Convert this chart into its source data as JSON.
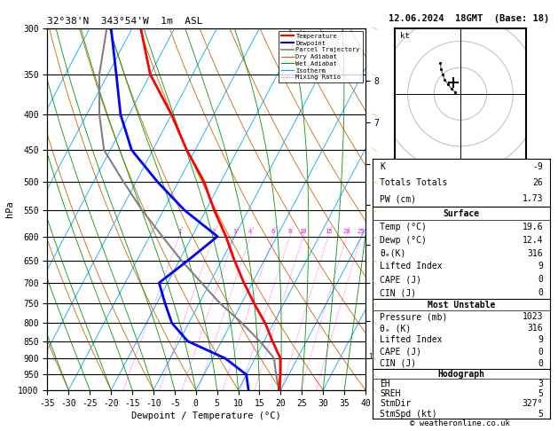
{
  "title_left": "32°38'N  343°54'W  1m  ASL",
  "title_right": "12.06.2024  18GMT  (Base: 18)",
  "copyright": "© weatheronline.co.uk",
  "xlabel": "Dewpoint / Temperature (°C)",
  "ylabel_left": "hPa",
  "pressure_levels": [
    300,
    350,
    400,
    450,
    500,
    550,
    600,
    650,
    700,
    750,
    800,
    850,
    900,
    950,
    1000
  ],
  "temp_profile": {
    "pressure": [
      1000,
      950,
      900,
      850,
      800,
      750,
      700,
      650,
      600,
      550,
      500,
      450,
      400,
      350,
      300
    ],
    "temp": [
      19.6,
      18.0,
      16.0,
      12.0,
      8.0,
      3.0,
      -2.0,
      -7.0,
      -12.0,
      -18.0,
      -24.0,
      -32.0,
      -40.0,
      -50.0,
      -58.0
    ]
  },
  "dewp_profile": {
    "pressure": [
      1000,
      950,
      900,
      850,
      800,
      750,
      700,
      650,
      600,
      550,
      500,
      450,
      400,
      350,
      300
    ],
    "temp": [
      12.4,
      10.0,
      3.0,
      -8.0,
      -14.0,
      -18.0,
      -22.0,
      -18.0,
      -14.0,
      -25.0,
      -35.0,
      -45.0,
      -52.0,
      -58.0,
      -65.0
    ]
  },
  "parcel_profile": {
    "pressure": [
      1000,
      950,
      900,
      895,
      850,
      800,
      750,
      700,
      650,
      600,
      550,
      500,
      450,
      400,
      350,
      300
    ],
    "temp": [
      19.6,
      17.0,
      14.5,
      14.0,
      9.0,
      2.5,
      -5.0,
      -12.0,
      -19.5,
      -27.0,
      -35.0,
      -43.0,
      -51.5,
      -57.0,
      -62.0,
      -66.0
    ]
  },
  "km_ticks": {
    "km": [
      1,
      2,
      3,
      4,
      5,
      6,
      7,
      8
    ],
    "pressure": [
      899,
      795,
      700,
      616,
      540,
      472,
      410,
      357
    ]
  },
  "mixing_ratio_lines": [
    1,
    2,
    3,
    4,
    6,
    8,
    10,
    15,
    20,
    25
  ],
  "colors": {
    "temperature": "#ff0000",
    "dewpoint": "#0000ff",
    "parcel": "#808080",
    "dry_adiabat": "#cc6600",
    "wet_adiabat": "#009900",
    "isotherm": "#00aaff",
    "mixing_ratio": "#ff00ff"
  },
  "stats": {
    "K": -9,
    "Totals_Totals": 26,
    "PW_cm": 1.73,
    "Surface_Temp": 19.6,
    "Surface_Dewp": 12.4,
    "Surface_theta_e": 316,
    "Surface_LI": 9,
    "Surface_CAPE": 0,
    "Surface_CIN": 0,
    "MU_Pressure": 1023,
    "MU_theta_e": 316,
    "MU_LI": 9,
    "MU_CAPE": 0,
    "MU_CIN": 0,
    "EH": 3,
    "SREH": 5,
    "StmDir": 327,
    "StmSpd": 5
  },
  "lcl_pressure": 895,
  "skew_factor": 45.0,
  "tmin": -35,
  "tmax": 40,
  "pmin": 300,
  "pmax": 1000
}
